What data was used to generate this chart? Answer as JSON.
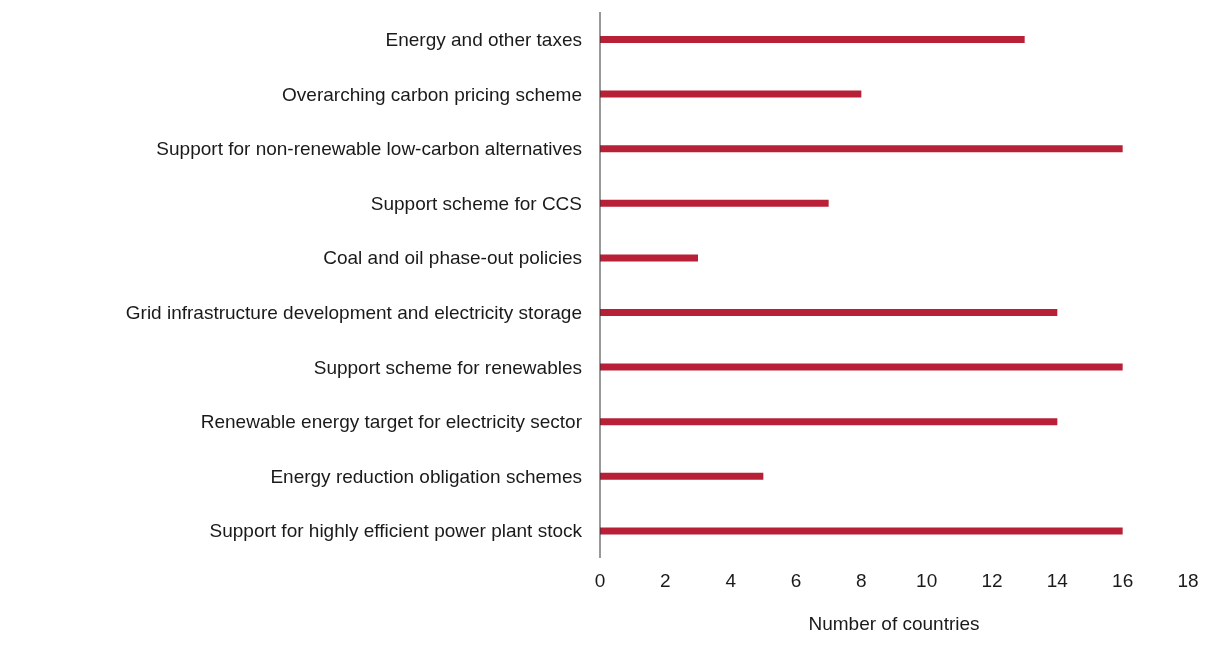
{
  "chart_data": {
    "type": "bar",
    "orientation": "horizontal",
    "xlabel": "Number of countries",
    "categories": [
      "Energy and other taxes",
      "Overarching carbon pricing scheme",
      "Support for non-renewable low-carbon alternatives",
      "Support scheme for CCS",
      "Coal and oil phase-out policies",
      "Grid infrastructure development and electricity storage",
      "Support scheme for renewables",
      "Renewable energy target for electricity sector",
      "Energy reduction obligation schemes",
      "Support for highly efficient power plant stock"
    ],
    "values": [
      13,
      8,
      16,
      7,
      3,
      14,
      16,
      14,
      5,
      16
    ],
    "color": "#b82037",
    "xlim": [
      0,
      18
    ],
    "xticks": [
      0,
      2,
      4,
      6,
      8,
      10,
      12,
      14,
      16,
      18
    ],
    "grid": false,
    "legend": false
  }
}
